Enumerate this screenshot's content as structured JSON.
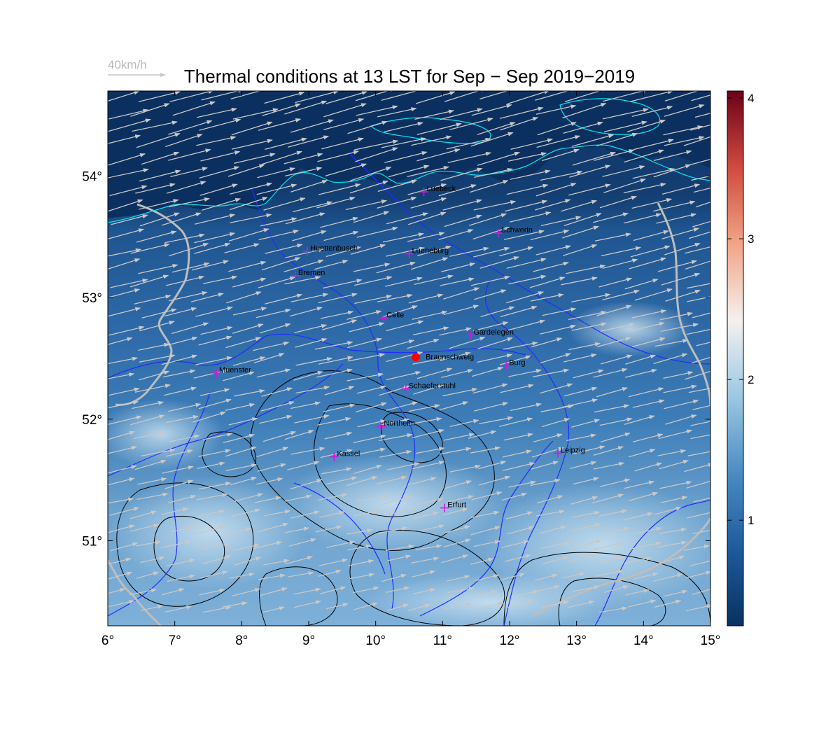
{
  "title": "Thermal conditions at 13 LST for Sep − Sep  2019−2019",
  "reference_vector": {
    "label": "40km/h",
    "speed_kmh": 40
  },
  "map_extent": {
    "lon": [
      6,
      15
    ],
    "lat": [
      50.3,
      54.7
    ]
  },
  "x_ticks": [
    {
      "value": 6,
      "label": "6°"
    },
    {
      "value": 7,
      "label": "7°"
    },
    {
      "value": 8,
      "label": "8°"
    },
    {
      "value": 9,
      "label": "9°"
    },
    {
      "value": 10,
      "label": "10°"
    },
    {
      "value": 11,
      "label": "11°"
    },
    {
      "value": 12,
      "label": "12°"
    },
    {
      "value": 13,
      "label": "13°"
    },
    {
      "value": 14,
      "label": "14°"
    },
    {
      "value": 15,
      "label": "15°"
    }
  ],
  "y_ticks": [
    {
      "value": 51,
      "label": "51°"
    },
    {
      "value": 52,
      "label": "52°"
    },
    {
      "value": 53,
      "label": "53°"
    },
    {
      "value": 54,
      "label": "54°"
    }
  ],
  "colorbar": {
    "range": [
      0.25,
      4.05
    ],
    "ticks": [
      {
        "value": 1,
        "label": "1"
      },
      {
        "value": 2,
        "label": "2"
      },
      {
        "value": 3,
        "label": "3"
      },
      {
        "value": 4,
        "label": "4"
      }
    ],
    "colors": [
      "#08315f",
      "#1d5b9d",
      "#4b8cc3",
      "#9cc8e2",
      "#f4f1ef",
      "#f2a487",
      "#cf4b40",
      "#6c0119"
    ]
  },
  "cities": [
    {
      "name": "Luebeck",
      "lon": 10.72,
      "lat": 53.87
    },
    {
      "name": "Schwerin",
      "lon": 11.83,
      "lat": 53.53
    },
    {
      "name": "Huettenbusch",
      "lon": 8.98,
      "lat": 53.38
    },
    {
      "name": "Lueneburg",
      "lon": 10.5,
      "lat": 53.36
    },
    {
      "name": "Bremen",
      "lon": 8.8,
      "lat": 53.18
    },
    {
      "name": "Celle",
      "lon": 10.12,
      "lat": 52.83
    },
    {
      "name": "Gardelegen",
      "lon": 11.42,
      "lat": 52.69
    },
    {
      "name": "Braunschweig",
      "lon": 10.6,
      "lat": 52.51,
      "highlight": true
    },
    {
      "name": "Burg",
      "lon": 11.95,
      "lat": 52.44
    },
    {
      "name": "Muenster",
      "lon": 7.62,
      "lat": 52.38
    },
    {
      "name": "Schaeferstuhl",
      "lon": 10.45,
      "lat": 52.25
    },
    {
      "name": "Northeim",
      "lon": 10.08,
      "lat": 51.94
    },
    {
      "name": "Kassel",
      "lon": 9.38,
      "lat": 51.69
    },
    {
      "name": "Leipzig",
      "lon": 12.72,
      "lat": 51.72
    },
    {
      "name": "Erfurt",
      "lon": 11.03,
      "lat": 51.27
    }
  ],
  "colors": {
    "coastline": "#00e5ee",
    "rivers": "#1f2dff",
    "terrain_contours": "#000000",
    "borders": "#bdbdbd",
    "wind_vectors": "#c8c8c8",
    "city_marker": "#e010e0",
    "highlight_marker": "#ff0000"
  }
}
